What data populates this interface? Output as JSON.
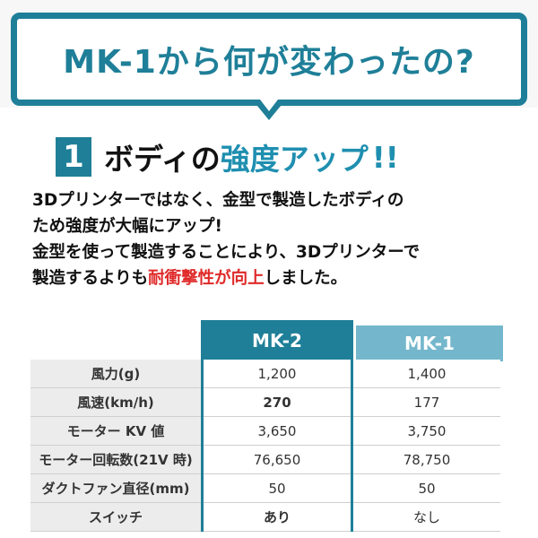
{
  "banner": {
    "title": "MK-1から何が変わったの?"
  },
  "heading": {
    "number": "1",
    "text_black": "ボディの",
    "text_teal": "強度アップ",
    "exclaim": "!!"
  },
  "description": {
    "line1": "3Dプリンターではなく、金型で製造したボディの",
    "line2": "ため強度が大幅にアップ!",
    "line3": "金型を使って製造することにより、3Dプリンターで",
    "line4_pre": "製造するよりも",
    "line4_red": "耐衝撃性が向上",
    "line4_post": "しました。"
  },
  "table": {
    "columns": [
      "MK-2",
      "MK-1"
    ],
    "rows": [
      {
        "label": "風力(g)",
        "mk2": "1,200",
        "mk1": "1,400",
        "mk2_highlight": false
      },
      {
        "label": "風速(km/h)",
        "mk2": "270",
        "mk1": "177",
        "mk2_highlight": true
      },
      {
        "label": "モーター KV 値",
        "mk2": "3,650",
        "mk1": "3,750",
        "mk2_highlight": false
      },
      {
        "label": "モーター回転数(21V 時)",
        "mk2": "76,650",
        "mk1": "78,750",
        "mk2_highlight": false
      },
      {
        "label": "ダクトファン直径(mm)",
        "mk2": "50",
        "mk1": "50",
        "mk2_highlight": false
      },
      {
        "label": "スイッチ",
        "mk2": "あり",
        "mk1": "なし",
        "mk2_highlight": true
      }
    ]
  },
  "colors": {
    "teal": "#1f7f98",
    "light_teal": "#74b7cc",
    "highlight_red": "#e02a2a"
  }
}
